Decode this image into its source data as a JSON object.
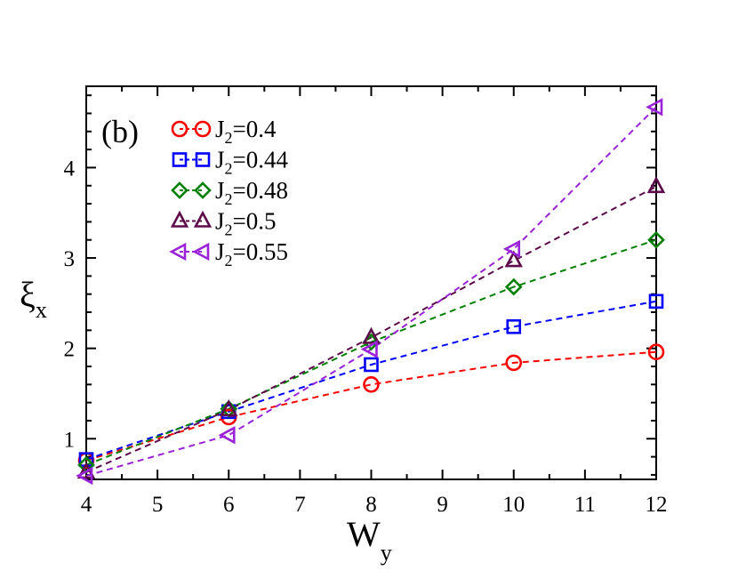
{
  "chart_data": {
    "type": "line",
    "panel_label": "(b)",
    "xlabel": {
      "main": "W",
      "sub": "y"
    },
    "ylabel": {
      "main": "ξ",
      "sub": "x"
    },
    "xlim": [
      4,
      12
    ],
    "ylim": [
      0.55,
      4.9
    ],
    "xticks": [
      4,
      5,
      6,
      7,
      8,
      9,
      10,
      11,
      12
    ],
    "yticks": [
      1,
      2,
      3,
      4
    ],
    "grid": false,
    "legend_position": "top-left",
    "x": [
      4,
      6,
      8,
      10,
      12
    ],
    "series": [
      {
        "name": "J2=0.4",
        "label_main": "J",
        "label_sub": "2",
        "label_rest": "=0.4",
        "color": "#ff0000",
        "marker": "circle",
        "values": [
          0.76,
          1.24,
          1.6,
          1.84,
          1.96
        ]
      },
      {
        "name": "J2=0.44",
        "label_main": "J",
        "label_sub": "2",
        "label_rest": "=0.44",
        "color": "#0000ff",
        "marker": "square",
        "values": [
          0.77,
          1.3,
          1.82,
          2.24,
          2.52
        ]
      },
      {
        "name": "J2=0.48",
        "label_main": "J",
        "label_sub": "2",
        "label_rest": "=0.48",
        "color": "#008000",
        "marker": "diamond",
        "values": [
          0.71,
          1.33,
          2.07,
          2.68,
          3.2
        ]
      },
      {
        "name": "J2=0.5",
        "label_main": "J",
        "label_sub": "2",
        "label_rest": "=0.5",
        "color": "#5c0a4a",
        "marker": "triangle-up",
        "values": [
          0.63,
          1.32,
          2.12,
          2.97,
          3.79
        ]
      },
      {
        "name": "J2=0.55",
        "label_main": "J",
        "label_sub": "2",
        "label_rest": "=0.55",
        "color": "#9a22d8",
        "marker": "triangle-left",
        "values": [
          0.59,
          1.04,
          1.99,
          3.1,
          4.67
        ]
      }
    ]
  }
}
